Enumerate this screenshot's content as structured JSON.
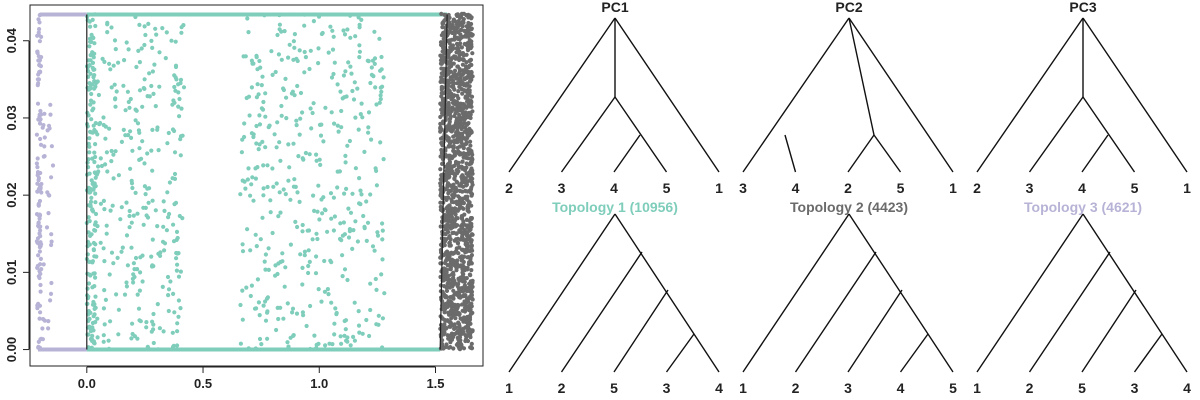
{
  "colors": {
    "topology1": "#7fcdbb",
    "topology2": "#6b6b6b",
    "topology3": "#b7b3d6",
    "ink": "#222222"
  },
  "chart_data": [
    {
      "type": "scatter",
      "x_ticks": [
        "0.0",
        "0.5",
        "1.0",
        "1.5"
      ],
      "x_tick_values": [
        0.0,
        0.5,
        1.0,
        1.5
      ],
      "y_ticks": [
        "0.00",
        "0.01",
        "0.02",
        "0.03",
        "0.04"
      ],
      "y_tick_values": [
        0.0,
        0.01,
        0.02,
        0.03,
        0.04
      ],
      "xlim": [
        -0.24,
        1.7
      ],
      "ylim": [
        -0.002,
        0.0445
      ],
      "grid": false,
      "legend": "none",
      "groups": [
        {
          "series": "topology3",
          "color": "#b7b3d6",
          "regions": [
            {
              "x": [
                -0.215,
                -0.195
              ],
              "y": [
                0.0,
                0.0435
              ],
              "count": 110
            },
            {
              "x": [
                -0.2,
                -0.14
              ],
              "y": [
                0.0,
                0.032
              ],
              "count": 35
            }
          ],
          "baselines": [
            {
              "x": [
                -0.21,
                0.0
              ],
              "y": 0.0
            },
            {
              "x": [
                -0.2,
                0.0
              ],
              "y": 0.0434
            }
          ]
        },
        {
          "series": "topology1",
          "color": "#7fcdbb",
          "regions": [
            {
              "x": [
                0.0,
                0.04
              ],
              "y": [
                0.0,
                0.0435
              ],
              "count": 140
            },
            {
              "x": [
                0.0,
                0.42
              ],
              "y": [
                0.0,
                0.0435
              ],
              "count": 340
            },
            {
              "x": [
                0.66,
                1.28
              ],
              "y": [
                0.0,
                0.0435
              ],
              "count": 440
            }
          ],
          "baselines": [
            {
              "x": [
                0.0,
                1.52
              ],
              "y": 0.0
            },
            {
              "x": [
                0.0,
                1.55
              ],
              "y": 0.0434
            }
          ]
        },
        {
          "series": "topology2",
          "color": "#6b6b6b",
          "regions": [
            {
              "x": [
                1.52,
                1.66
              ],
              "y": [
                0.0,
                0.0435
              ],
              "count": 1400
            }
          ],
          "baselines": []
        }
      ],
      "boundaries": [
        {
          "from": [
            0.0,
            0.0
          ],
          "to": [
            0.0,
            0.0434
          ]
        },
        {
          "from": [
            1.52,
            0.0
          ],
          "to": [
            1.55,
            0.0434
          ]
        }
      ]
    },
    {
      "type": "trees",
      "pc_panels": [
        {
          "title": "PC1",
          "tips": [
            "2",
            "3",
            "4",
            "5",
            "1"
          ]
        },
        {
          "title": "PC2",
          "tips": [
            "3",
            "4",
            "2",
            "5",
            "1"
          ]
        },
        {
          "title": "PC3",
          "tips": [
            "2",
            "3",
            "4",
            "5",
            "1"
          ]
        }
      ],
      "topology_panels": [
        {
          "title": "Topology 1 (10956)",
          "color": "#7fcdbb",
          "tips": [
            "1",
            "2",
            "5",
            "3",
            "4"
          ]
        },
        {
          "title": "Topology 2 (4423)",
          "color": "#6b6b6b",
          "tips": [
            "1",
            "2",
            "3",
            "4",
            "5"
          ]
        },
        {
          "title": "Topology 3 (4621)",
          "color": "#b7b3d6",
          "tips": [
            "1",
            "2",
            "5",
            "3",
            "4"
          ]
        }
      ]
    }
  ]
}
